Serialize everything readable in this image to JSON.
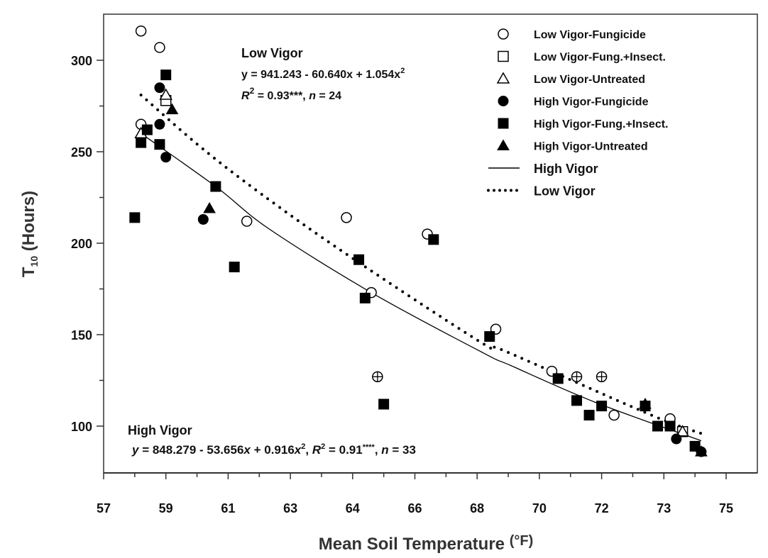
{
  "chart_data": {
    "type": "scatter",
    "xlabel": "Mean Soil Temperature",
    "xlabel_unit": "(°F)",
    "ylabel_main": "T",
    "ylabel_sub": "10",
    "ylabel_rest": " (Hours)",
    "x_ticks": [
      57,
      59,
      61,
      63,
      64,
      66,
      68,
      70,
      72,
      73,
      75
    ],
    "x_ticks_evenly_spaced": true,
    "y_ticks": [
      100,
      150,
      200,
      250,
      300
    ],
    "y_minor_ticks": [
      125,
      175,
      225,
      275
    ],
    "ylim": [
      74,
      325
    ],
    "grid": false,
    "legend_placement": "top-right",
    "series": [
      {
        "name": "Low Vigor-Fungicide",
        "marker": "circle-open",
        "points": [
          [
            58.2,
            316
          ],
          [
            58.8,
            307
          ],
          [
            58.2,
            265
          ],
          [
            61.6,
            212
          ],
          [
            63.9,
            214
          ],
          [
            66.4,
            205
          ],
          [
            64.6,
            173
          ],
          [
            68.6,
            153
          ],
          [
            70.4,
            130
          ],
          [
            73.2,
            104
          ],
          [
            72.2,
            106
          ],
          [
            64.8,
            127
          ],
          [
            71.2,
            127
          ],
          [
            72.0,
            127
          ]
        ]
      },
      {
        "name": "Low Vigor-Fung.+Insect.",
        "marker": "square-open",
        "points": [
          [
            59.0,
            278
          ],
          [
            73.6,
            97
          ]
        ]
      },
      {
        "name": "Low Vigor-Untreated",
        "marker": "triangle-open",
        "points": [
          [
            59.0,
            281
          ],
          [
            58.2,
            260
          ],
          [
            73.6,
            97
          ]
        ]
      },
      {
        "name": "High Vigor-Fungicide",
        "marker": "circle-filled",
        "points": [
          [
            58.8,
            285
          ],
          [
            58.8,
            265
          ],
          [
            59.0,
            247
          ],
          [
            60.2,
            213
          ],
          [
            73.4,
            93
          ],
          [
            74.2,
            86
          ]
        ]
      },
      {
        "name": "High Vigor-Fung.+Insect.",
        "marker": "square-filled",
        "points": [
          [
            59.0,
            292
          ],
          [
            58.4,
            262
          ],
          [
            58.2,
            255
          ],
          [
            58.8,
            254
          ],
          [
            58.0,
            214
          ],
          [
            60.6,
            231
          ],
          [
            61.2,
            187
          ],
          [
            64.2,
            191
          ],
          [
            64.4,
            170
          ],
          [
            65.0,
            112
          ],
          [
            66.6,
            202
          ],
          [
            68.4,
            149
          ],
          [
            70.6,
            126
          ],
          [
            71.2,
            114
          ],
          [
            71.6,
            106
          ],
          [
            72.0,
            111
          ],
          [
            72.7,
            111
          ],
          [
            72.9,
            100
          ],
          [
            73.2,
            100
          ],
          [
            74.0,
            89
          ]
        ]
      },
      {
        "name": "High Vigor-Untreated",
        "marker": "triangle-filled",
        "points": [
          [
            59.2,
            273
          ],
          [
            60.4,
            219
          ],
          [
            72.7,
            112
          ],
          [
            74.2,
            86
          ]
        ]
      }
    ],
    "crossed_points": [
      [
        64.8,
        127
      ],
      [
        71.2,
        127
      ],
      [
        72.0,
        127
      ]
    ],
    "fits": [
      {
        "name": "High Vigor",
        "style": "solid",
        "points": [
          [
            58.2,
            260
          ],
          [
            60.6,
            231
          ],
          [
            62.3,
            208
          ],
          [
            64.6,
            173
          ],
          [
            68.2,
            140
          ],
          [
            69.1,
            133
          ],
          [
            71.8,
            113
          ],
          [
            74.2,
            92
          ]
        ]
      },
      {
        "name": "Low Vigor",
        "style": "dotted",
        "points": [
          [
            58.2,
            281
          ],
          [
            60.3,
            250
          ],
          [
            62.7,
            219
          ],
          [
            64.5,
            186
          ],
          [
            68.2,
            145
          ],
          [
            68.9,
            141
          ],
          [
            72.8,
            106
          ],
          [
            74.2,
            96
          ]
        ]
      }
    ],
    "annotations": {
      "low": {
        "title": "Low Vigor",
        "eq": "y = 941.243 - 60.640x + 1.054x",
        "eq_sup": "2",
        "r_label": "R",
        "r_sup": "2",
        "r_value": " = 0.93***, ",
        "n_label": "n",
        "n_value": " = 24"
      },
      "high": {
        "title": "High Vigor",
        "y_label": "y",
        "eq": " = 848.279 - 53.656",
        "x1": "x",
        "eq2": "  + 0.916",
        "x2": "x",
        "eq_sup": "2",
        "comma": ", ",
        "r_label": "R",
        "r_sup": "2",
        "r_value": " = 0.91",
        "r_stars": "****",
        "comma2": ", ",
        "n_label": "n",
        "n_value": " = 33"
      }
    },
    "colors": {
      "marker": "#000000",
      "axis": "#333333",
      "text": "#111111"
    }
  }
}
